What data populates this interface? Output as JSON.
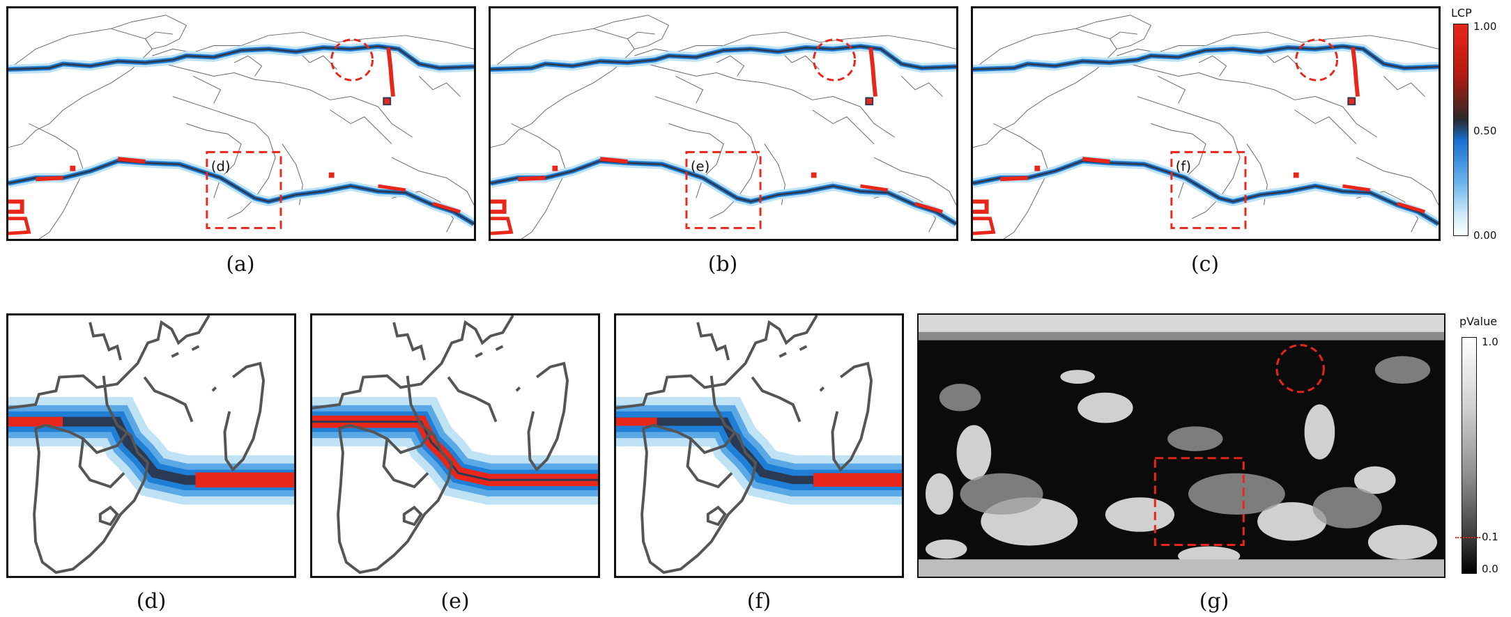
{
  "panels": {
    "a": {
      "caption": "(a)",
      "inset_label": "(d)"
    },
    "b": {
      "caption": "(b)",
      "inset_label": "(e)"
    },
    "c": {
      "caption": "(c)",
      "inset_label": "(f)"
    },
    "d": {
      "caption": "(d)"
    },
    "e": {
      "caption": "(e)"
    },
    "f": {
      "caption": "(f)"
    },
    "g": {
      "caption": "(g)"
    }
  },
  "colorbar_lcp": {
    "title": "LCP",
    "ticks": [
      "1.00",
      "0.50",
      "0.00"
    ],
    "colors": [
      "#e8261a",
      "#2a2a2a",
      "#1a6fd0",
      "#bfe2f5",
      "#ffffff"
    ]
  },
  "colorbar_pvalue": {
    "title": "pValue",
    "ticks": [
      "1.0",
      "0.1",
      "0.0"
    ],
    "threshold_value": 0.1,
    "threshold_color": "#e8261a"
  },
  "colors": {
    "path_red": "#e8261a",
    "path_dark": "#2a3a55",
    "glow_blue": "#1f7fd6",
    "glow_light": "#bfe2f5",
    "annotation_red": "#e8261a",
    "coast_gray": "#666666"
  }
}
